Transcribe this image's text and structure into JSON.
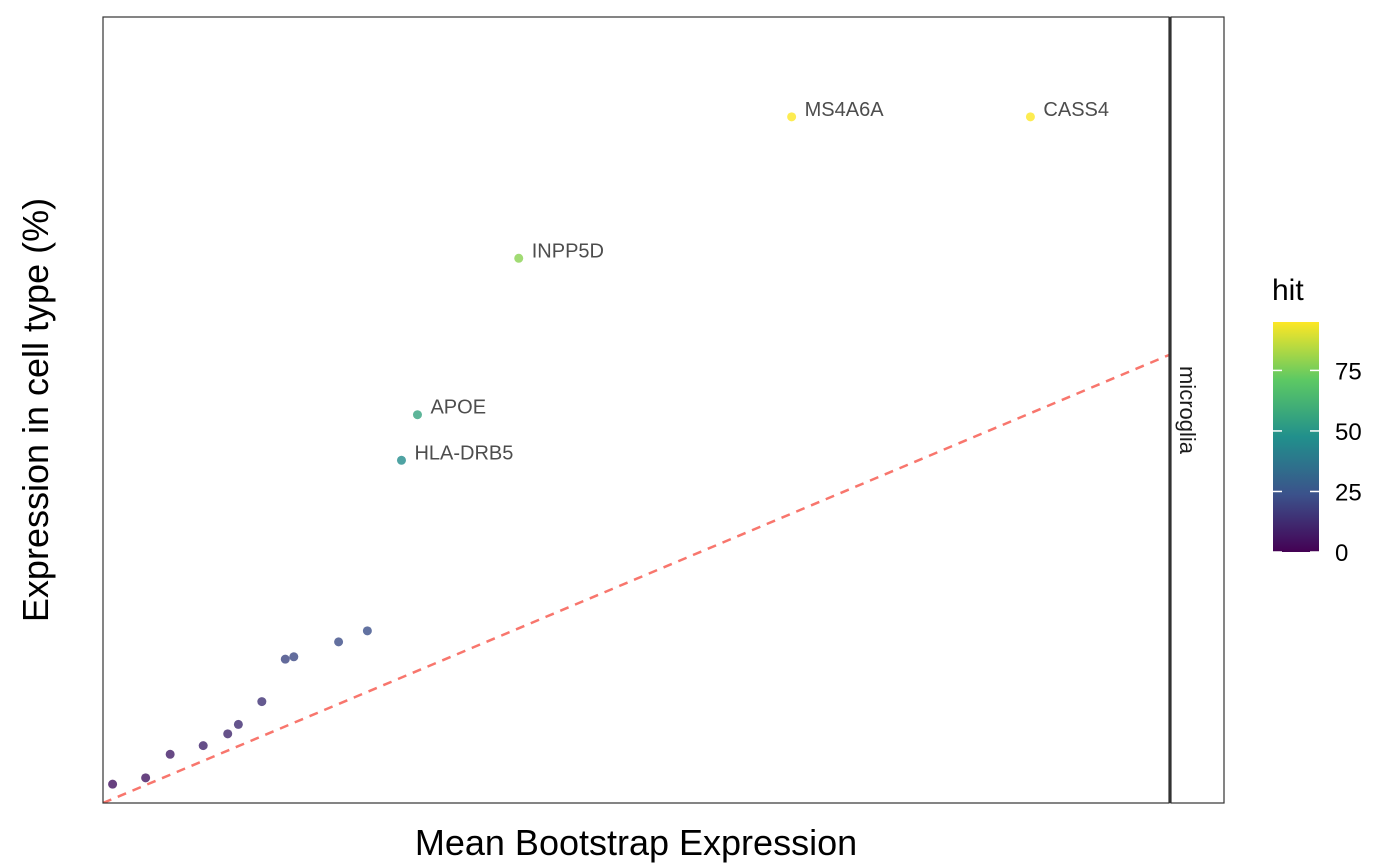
{
  "chart_data": {
    "type": "scatter",
    "xlabel": "Mean Bootstrap Expression",
    "ylabel": "Expression in cell type (%)",
    "facet_label": "microglia",
    "xlim": [
      0,
      100
    ],
    "ylim": [
      0,
      100
    ],
    "ticks_shown": false,
    "grid": false,
    "reference_line": {
      "slope": 0.57,
      "intercept": 0,
      "color": "#F8766D",
      "style": "dashed"
    },
    "color_scale": {
      "title": "hit",
      "min": 0,
      "max": 95,
      "ticks": [
        0,
        25,
        50,
        75
      ],
      "stops": [
        "#440154",
        "#3B528B",
        "#21908C",
        "#5DC963",
        "#FDE725"
      ]
    },
    "points": [
      {
        "x": 0.9,
        "y": 2.4,
        "hit": 5
      },
      {
        "x": 4.0,
        "y": 3.2,
        "hit": 6
      },
      {
        "x": 6.3,
        "y": 6.2,
        "hit": 8
      },
      {
        "x": 9.4,
        "y": 7.3,
        "hit": 10
      },
      {
        "x": 11.7,
        "y": 8.8,
        "hit": 11
      },
      {
        "x": 12.7,
        "y": 10.0,
        "hit": 12
      },
      {
        "x": 14.9,
        "y": 12.9,
        "hit": 14
      },
      {
        "x": 17.1,
        "y": 18.3,
        "hit": 20
      },
      {
        "x": 17.9,
        "y": 18.6,
        "hit": 21
      },
      {
        "x": 22.1,
        "y": 20.5,
        "hit": 22
      },
      {
        "x": 24.8,
        "y": 21.9,
        "hit": 23
      },
      {
        "x": 28.0,
        "y": 43.6,
        "hit": 46,
        "label": "HLA-DRB5"
      },
      {
        "x": 29.5,
        "y": 49.4,
        "hit": 55,
        "label": "APOE"
      },
      {
        "x": 39.0,
        "y": 69.3,
        "hit": 78,
        "label": "INPP5D"
      },
      {
        "x": 64.6,
        "y": 87.3,
        "hit": 95,
        "label": "MS4A6A"
      },
      {
        "x": 87.0,
        "y": 87.3,
        "hit": 95,
        "label": "CASS4"
      }
    ]
  }
}
